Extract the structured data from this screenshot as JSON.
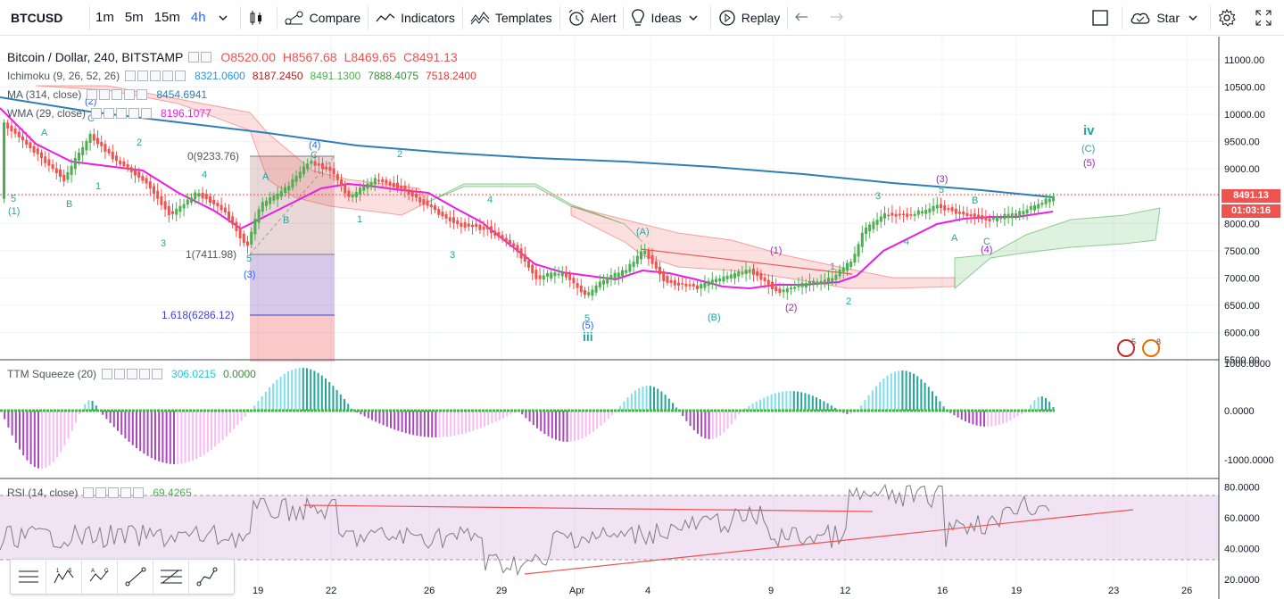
{
  "toolbar": {
    "symbol": "BTCUSD",
    "intervals": [
      "1m",
      "5m",
      "15m",
      "4h"
    ],
    "active_interval": "4h",
    "compare_label": "Compare",
    "indicators_label": "Indicators",
    "templates_label": "Templates",
    "alert_label": "Alert",
    "ideas_label": "Ideas",
    "replay_label": "Replay",
    "star_label": "Star"
  },
  "main_legend": {
    "title": "Bitcoin / Dollar, 240, BITSTAMP",
    "open": "O8520.00",
    "high": "H8567.68",
    "low": "L8469.65",
    "close": "C8491.13"
  },
  "ichimoku": {
    "name": "Ichimoku (9, 26, 52, 26)",
    "values": [
      "8321.0600",
      "8187.2450",
      "8491.1300",
      "7888.4075",
      "7518.2400"
    ],
    "colors": [
      "#2196f3",
      "#b71c1c",
      "#4caf50",
      "#388e3c",
      "#e53935"
    ]
  },
  "ma": {
    "name": "MA (314, close)",
    "value": "8454.6941",
    "color": "#2e7fb8"
  },
  "wma": {
    "name": "WMA (29, close)",
    "value": "8196.1077",
    "color": "#e91ee5"
  },
  "ttm": {
    "name": "TTM Squeeze (20)",
    "value1": "306.0215",
    "value2": "0.0000"
  },
  "rsi": {
    "name": "RSI (14, close)",
    "value": "69.4265"
  },
  "price_axis": {
    "main_ticks": [
      "11000.00",
      "10500.00",
      "10000.00",
      "9500.00",
      "9000.00",
      "8500.00",
      "8000.00",
      "7500.00",
      "7000.00",
      "6500.00",
      "6000.00",
      "5500.00"
    ],
    "ttm_ticks": [
      "1000.0000",
      "0.0000",
      "-1000.0000"
    ],
    "rsi_ticks": [
      "80.0000",
      "60.0000",
      "40.0000",
      "20.0000"
    ],
    "last_price": "8491.13",
    "countdown": "01:03:16"
  },
  "time_axis": [
    "19",
    "22",
    "26",
    "29",
    "Apr",
    "4",
    "9",
    "12",
    "16",
    "19",
    "23",
    "26"
  ],
  "annotations": {
    "fib_high": "0(9233.76)",
    "fib_low": "1(7411.98)",
    "fib_ext": "1.618(6286.12)",
    "wave_iv": "iv",
    "wave_iii": "iii"
  },
  "badges": {
    "a": "5",
    "b": "8"
  },
  "colors": {
    "up": "#4caf50",
    "down": "#ef5350",
    "accent": "#2962ff"
  }
}
